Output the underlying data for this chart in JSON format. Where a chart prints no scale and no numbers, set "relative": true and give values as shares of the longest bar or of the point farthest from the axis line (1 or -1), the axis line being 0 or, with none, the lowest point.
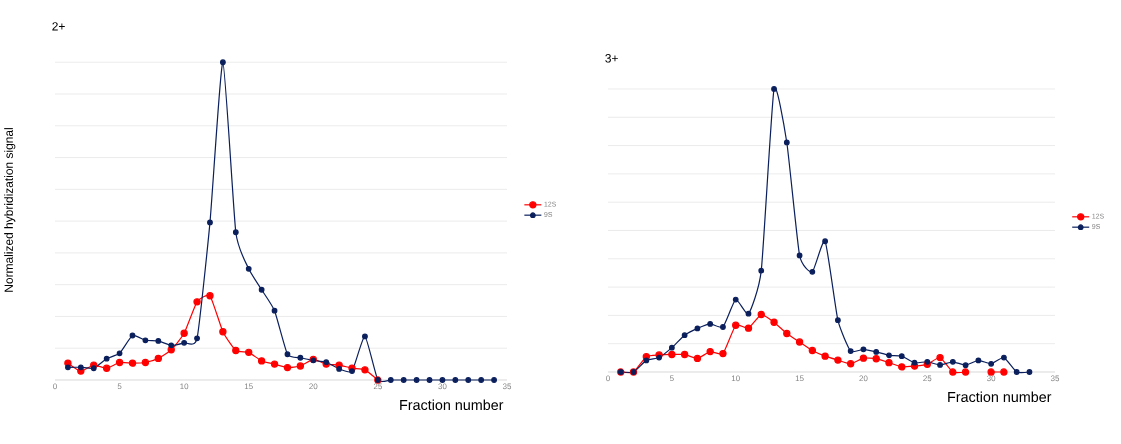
{
  "chart_data": [
    {
      "type": "line",
      "title": "2+",
      "xlabel": "Fraction number",
      "ylabel": "Normalized hybridization signal",
      "relative": true,
      "grid": "y",
      "legend": "right",
      "marker": "circle",
      "xlim": [
        0,
        35
      ],
      "xticks": [
        0,
        5,
        10,
        15,
        20,
        25,
        30,
        35
      ],
      "x": [
        1,
        2,
        3,
        4,
        5,
        6,
        7,
        8,
        9,
        10,
        11,
        12,
        13,
        14,
        15,
        16,
        17,
        18,
        19,
        20,
        21,
        22,
        23,
        24,
        25,
        26,
        27,
        28,
        29,
        30,
        31,
        32,
        33,
        34
      ],
      "series": [
        {
          "name": "12S",
          "color": "#ff0000",
          "values": [
            0.053,
            0.028,
            0.047,
            0.037,
            0.055,
            0.053,
            0.055,
            0.068,
            0.095,
            0.147,
            0.246,
            0.265,
            0.152,
            0.093,
            0.087,
            0.06,
            0.05,
            0.039,
            0.044,
            0.065,
            0.05,
            0.047,
            0.037,
            0.032,
            0,
            null,
            null,
            null,
            null,
            null,
            null,
            null,
            null,
            null
          ]
        },
        {
          "name": "9S",
          "color": "#0a1f5c",
          "values": [
            0.04,
            0.04,
            0.037,
            0.067,
            0.084,
            0.14,
            0.125,
            0.123,
            0.109,
            0.117,
            0.131,
            0.496,
            1,
            0.465,
            0.35,
            0.284,
            0.218,
            0.081,
            0.07,
            0.062,
            0.056,
            0.035,
            0.028,
            0.137,
            0,
            0,
            0,
            0,
            0,
            0,
            0,
            0,
            0,
            0
          ]
        }
      ]
    },
    {
      "type": "line",
      "title": "3+",
      "xlabel": "Fraction number",
      "relative": true,
      "grid": "y",
      "legend": "right",
      "marker": "circle",
      "xlim": [
        0,
        35
      ],
      "xticks": [
        0,
        5,
        10,
        15,
        20,
        25,
        30,
        35
      ],
      "x": [
        1,
        2,
        3,
        4,
        5,
        6,
        7,
        8,
        9,
        10,
        11,
        12,
        13,
        14,
        15,
        16,
        17,
        18,
        19,
        20,
        21,
        22,
        23,
        24,
        25,
        26,
        27,
        28,
        29,
        30,
        31,
        32,
        33
      ],
      "series": [
        {
          "name": "12S",
          "color": "#ff0000",
          "values": [
            0,
            0,
            0.054,
            0.06,
            0.062,
            0.062,
            0.048,
            0.072,
            0.065,
            0.165,
            0.155,
            0.203,
            0.176,
            0.136,
            0.106,
            0.076,
            0.056,
            0.042,
            0.029,
            0.049,
            0.047,
            0.033,
            0.018,
            0.021,
            0.027,
            0.051,
            0,
            0,
            null,
            0,
            0,
            null,
            null
          ]
        },
        {
          "name": "9S",
          "color": "#0a1f5c",
          "values": [
            0,
            0,
            0.041,
            0.051,
            0.086,
            0.13,
            0.154,
            0.17,
            0.159,
            0.256,
            0.206,
            0.358,
            1,
            0.811,
            0.412,
            0.354,
            0.462,
            0.183,
            0.074,
            0.08,
            0.071,
            0.059,
            0.056,
            0.033,
            0.036,
            0.025,
            0.036,
            0.024,
            0.041,
            0.029,
            0.051,
            0,
            0
          ]
        }
      ]
    }
  ]
}
